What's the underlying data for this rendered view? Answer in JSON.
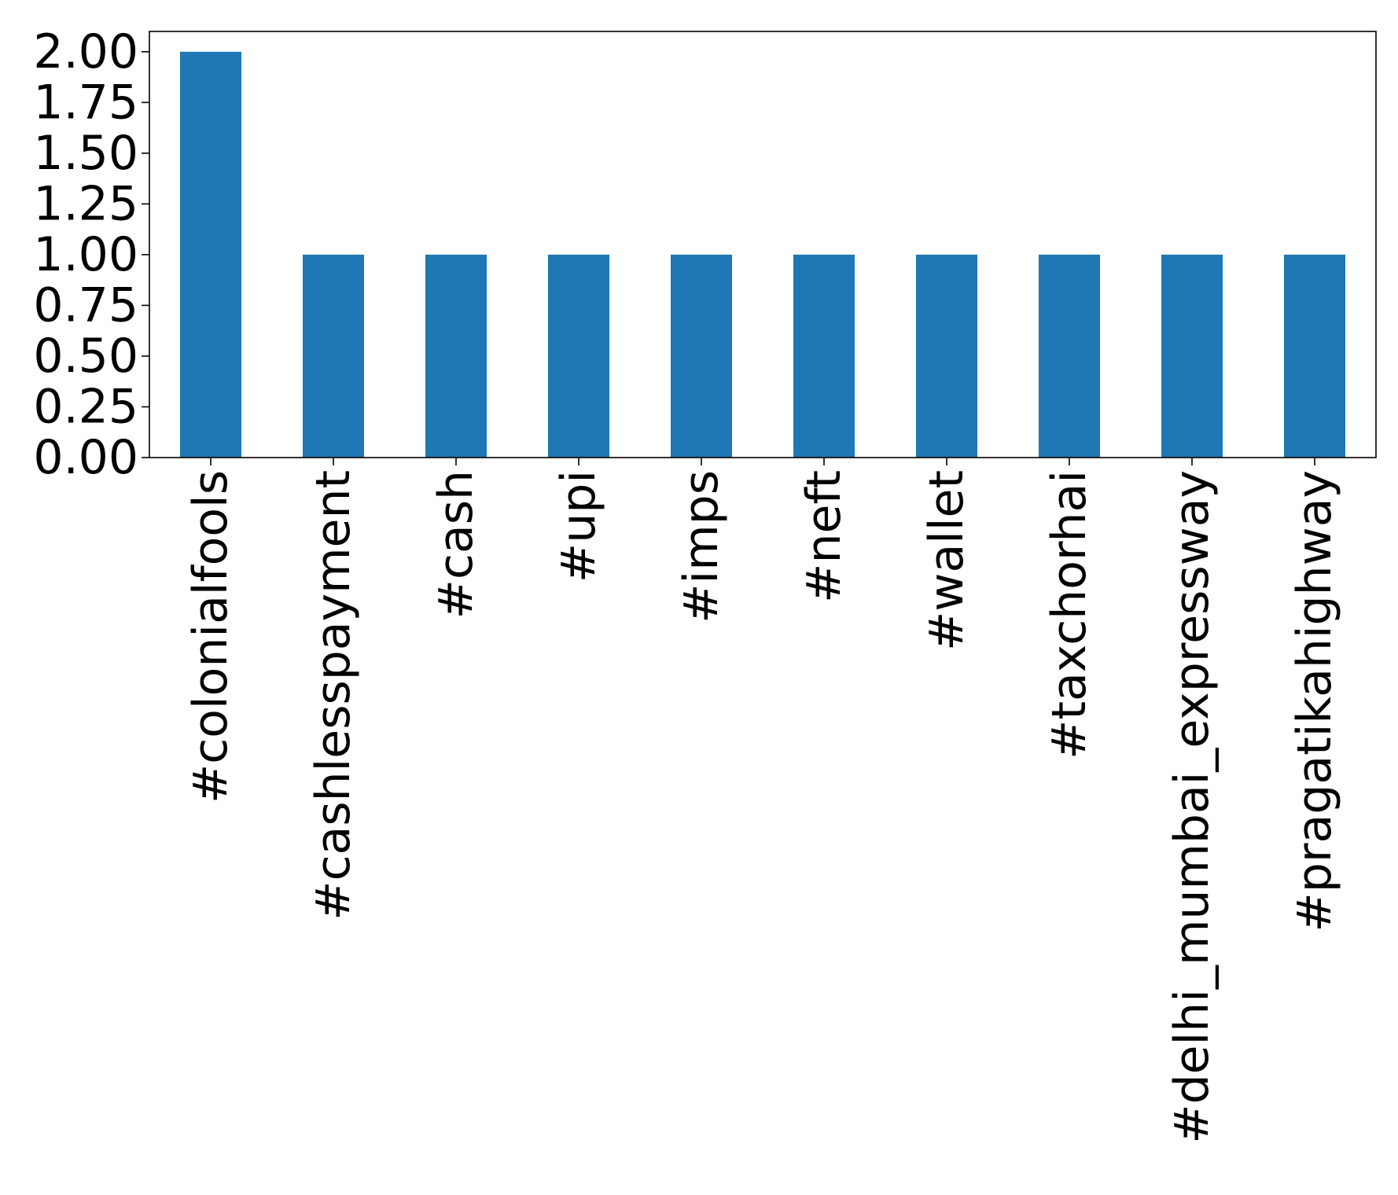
{
  "chart_data": {
    "type": "bar",
    "categories": [
      "#colonialfools",
      "#cashlesspayment",
      "#cash",
      "#upi",
      "#imps",
      "#neft",
      "#wallet",
      "#taxchorhai",
      "#delhi_mumbai_expressway",
      "#pragatikahighway"
    ],
    "values": [
      2,
      1,
      1,
      1,
      1,
      1,
      1,
      1,
      1,
      1
    ],
    "yticks": [
      "0.00",
      "0.25",
      "0.50",
      "0.75",
      "1.00",
      "1.25",
      "1.50",
      "1.75",
      "2.00"
    ],
    "ylim": [
      0,
      2.1
    ],
    "grid": false,
    "legend": "none",
    "bar_color": "#1f77b4"
  }
}
